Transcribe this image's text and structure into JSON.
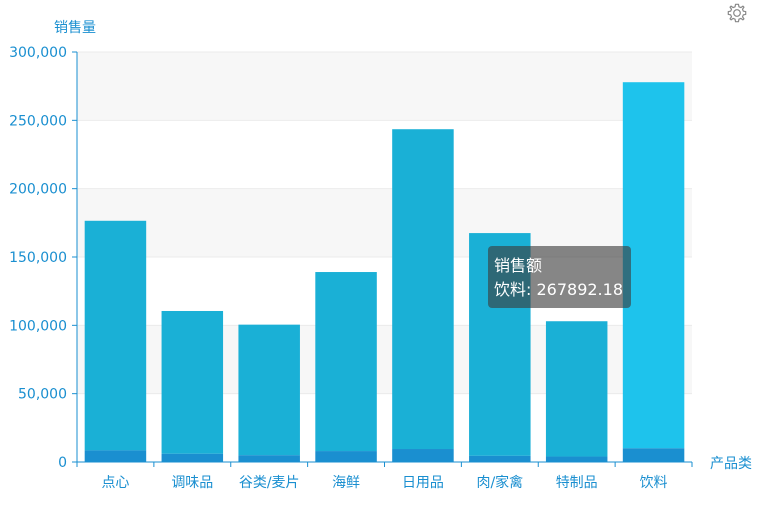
{
  "chart_data": {
    "type": "bar",
    "ylabel": "销售量",
    "xlabel": "产品类",
    "ylim": [
      0,
      300000
    ],
    "yticks": [
      0,
      50000,
      100000,
      150000,
      200000,
      250000,
      300000
    ],
    "ytick_labels": [
      "0",
      "50,000",
      "100,000",
      "150,000",
      "200,000",
      "250,000",
      "300,000"
    ],
    "categories": [
      "点心",
      "调味品",
      "谷类/麦片",
      "海鲜",
      "日用品",
      "肉/家禽",
      "特制品",
      "饮料"
    ],
    "series": [
      {
        "name": "销售量",
        "values": [
          8500,
          6000,
          5000,
          8000,
          9500,
          4500,
          4000,
          10000
        ]
      },
      {
        "name": "销售额",
        "values": [
          168000,
          104500,
          95500,
          131000,
          234000,
          163000,
          99000,
          267892.18
        ]
      }
    ],
    "highlight_index": 7,
    "grid": true,
    "colors": {
      "axis": "#1a8fd0",
      "bar_top": "#1ab0d6",
      "bar_top_highlight": "#1ec3ec",
      "bar_bottom": "#1a8fd0",
      "split_band": "#f7f7f7",
      "grid": "#ebebeb"
    }
  },
  "tooltip": {
    "series_name": "销售额",
    "text": "饮料: 267892.18"
  },
  "toolbox": {
    "icon": "gear-icon"
  }
}
